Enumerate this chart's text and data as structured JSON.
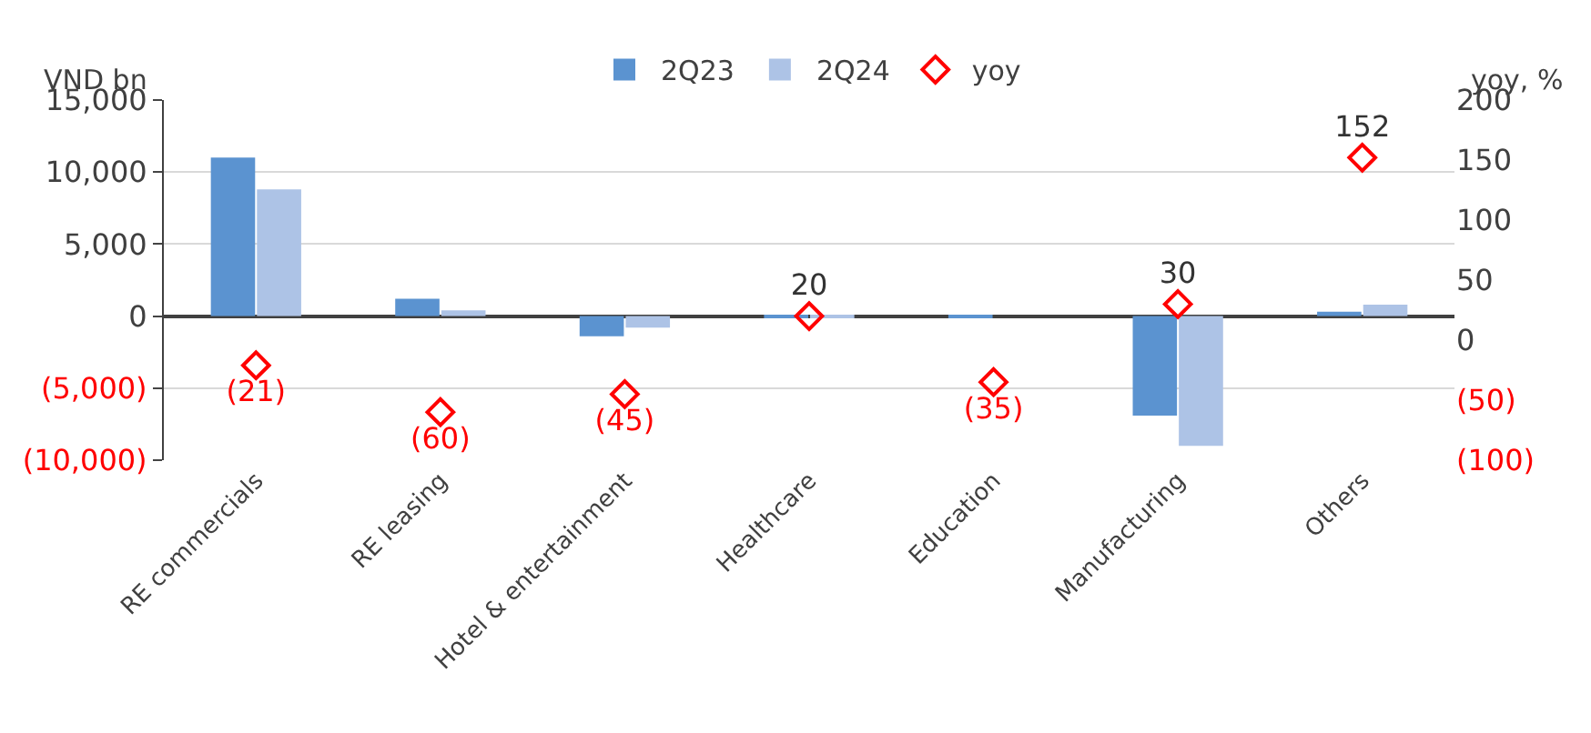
{
  "chart_data": {
    "type": "bar",
    "ylabel": "VND bn",
    "y2label": "yoy, %",
    "categories": [
      "RE commercials",
      "RE leasing",
      "Hotel & entertainment",
      "Healthcare",
      "Education",
      "Manufacturing",
      "Others"
    ],
    "series": [
      {
        "name": "2Q23",
        "color": "#5b93d0",
        "values": [
          11000,
          1200,
          -1400,
          -100,
          -100,
          -6900,
          300
        ]
      },
      {
        "name": "2Q24",
        "color": "#adc3e6",
        "values": [
          8800,
          400,
          -800,
          -100,
          null,
          -9000,
          800
        ]
      },
      {
        "name": "yoy",
        "type": "scatter",
        "axis": "y2",
        "color": "#ff0000",
        "marker": "diamond",
        "values": [
          -21,
          -60,
          -45,
          20,
          -35,
          30,
          152
        ],
        "value_labels": [
          "(21)",
          "(60)",
          "(45)",
          "20",
          "(35)",
          "30",
          "152"
        ]
      }
    ],
    "ylim": [
      -10000,
      15000
    ],
    "yticks": [
      {
        "value": -10000,
        "label": "(10,000)"
      },
      {
        "value": -5000,
        "label": "(5,000)"
      },
      {
        "value": 0,
        "label": "0"
      },
      {
        "value": 5000,
        "label": "5,000"
      },
      {
        "value": 10000,
        "label": "10,000"
      },
      {
        "value": 15000,
        "label": "15,000"
      }
    ],
    "y2lim": [
      -100,
      200
    ],
    "y2ticks": [
      {
        "value": -100,
        "label": "(100)"
      },
      {
        "value": -50,
        "label": "(50)"
      },
      0,
      50,
      100,
      150,
      200
    ],
    "grid": "y",
    "legend": "top"
  }
}
